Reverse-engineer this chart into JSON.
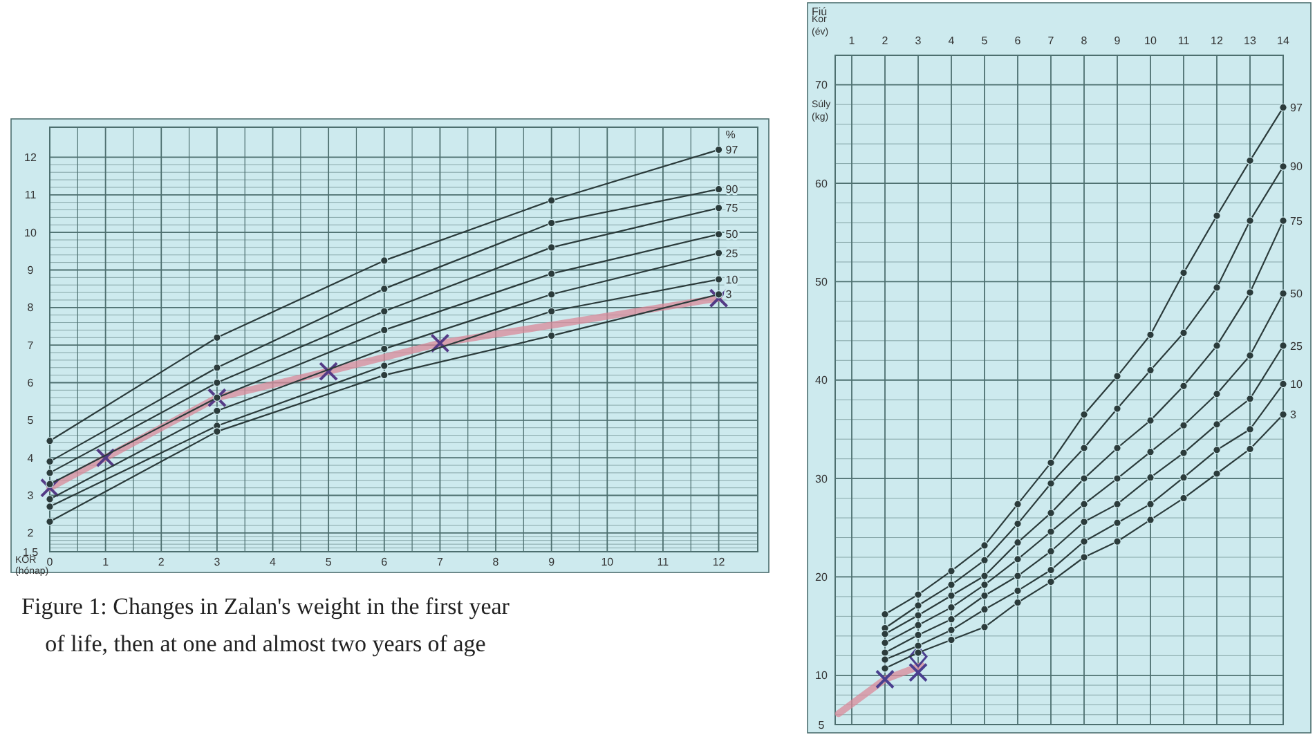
{
  "chart_data": [
    {
      "type": "line",
      "xlabel": "KOR (hónap)",
      "legend_title": "%",
      "xlim": [
        0,
        12.7
      ],
      "xticks": [
        0,
        1,
        2,
        3,
        4,
        5,
        6,
        7,
        8,
        9,
        10,
        11,
        12
      ],
      "ylim": [
        1.5,
        12.8
      ],
      "yticks": [
        1.5,
        2,
        3,
        4,
        5,
        6,
        7,
        8,
        9,
        10,
        11,
        12
      ],
      "grid": true,
      "annotations": [
        "Figure 1: Changes in Zalan's weight in the first year of life, then at one and almost two years of age"
      ],
      "series": [
        {
          "name": "97",
          "color": "#2b3b3b",
          "marker": "circle",
          "x": [
            0,
            3,
            6,
            9,
            12
          ],
          "values": [
            4.45,
            7.2,
            9.25,
            10.85,
            12.2
          ]
        },
        {
          "name": "90",
          "color": "#2b3b3b",
          "marker": "circle",
          "x": [
            0,
            3,
            6,
            9,
            12
          ],
          "values": [
            3.9,
            6.4,
            8.5,
            10.25,
            11.15
          ]
        },
        {
          "name": "75",
          "color": "#2b3b3b",
          "marker": "circle",
          "x": [
            0,
            3,
            6,
            9,
            12
          ],
          "values": [
            3.6,
            6.0,
            7.9,
            9.6,
            10.65
          ]
        },
        {
          "name": "50",
          "color": "#2b3b3b",
          "marker": "circle",
          "x": [
            0,
            3,
            6,
            9,
            12
          ],
          "values": [
            3.3,
            5.6,
            7.4,
            8.9,
            9.95
          ]
        },
        {
          "name": "25",
          "color": "#2b3b3b",
          "marker": "circle",
          "x": [
            0,
            3,
            6,
            9,
            12
          ],
          "values": [
            2.9,
            5.25,
            6.9,
            8.35,
            9.45
          ]
        },
        {
          "name": "10",
          "color": "#2b3b3b",
          "marker": "circle",
          "x": [
            0,
            3,
            6,
            9,
            12
          ],
          "values": [
            2.7,
            4.85,
            6.45,
            7.9,
            8.75
          ]
        },
        {
          "name": "3",
          "color": "#2b3b3b",
          "marker": "circle",
          "x": [
            0,
            3,
            6,
            9,
            12
          ],
          "values": [
            2.3,
            4.7,
            6.2,
            7.25,
            8.35
          ]
        },
        {
          "color": "#d98a9a",
          "marker": "cross",
          "x": [
            0,
            1,
            3,
            5,
            7,
            12
          ],
          "values": [
            3.2,
            4.0,
            5.6,
            6.3,
            7.05,
            8.25
          ]
        }
      ]
    },
    {
      "type": "line",
      "title": "Fiú",
      "xlabel": "Kor (év)",
      "ylabel": "Súly (kg)",
      "xlim": [
        0.5,
        14
      ],
      "xticks": [
        1,
        2,
        3,
        4,
        5,
        6,
        7,
        8,
        9,
        10,
        11,
        12,
        13,
        14
      ],
      "ylim": [
        5,
        73
      ],
      "yticks": [
        5,
        10,
        20,
        30,
        40,
        50,
        60,
        70
      ],
      "grid": true,
      "series": [
        {
          "name": "97",
          "color": "#2b3b3b",
          "marker": "circle",
          "x": [
            2,
            3,
            4,
            5,
            6,
            7,
            8,
            9,
            10,
            11,
            12,
            13,
            14
          ],
          "values": [
            16.2,
            18.2,
            20.6,
            23.2,
            27.4,
            31.6,
            36.5,
            40.4,
            44.6,
            50.9,
            56.7,
            62.3,
            67.7
          ]
        },
        {
          "name": "90",
          "color": "#2b3b3b",
          "marker": "circle",
          "x": [
            2,
            3,
            4,
            5,
            6,
            7,
            8,
            9,
            10,
            11,
            12,
            13,
            14
          ],
          "values": [
            14.8,
            17.1,
            19.2,
            21.7,
            25.4,
            29.5,
            33.1,
            37.1,
            41.0,
            44.8,
            49.4,
            56.2,
            61.7
          ]
        },
        {
          "name": "75",
          "color": "#2b3b3b",
          "marker": "circle",
          "x": [
            2,
            3,
            4,
            5,
            6,
            7,
            8,
            9,
            10,
            11,
            12,
            13,
            14
          ],
          "values": [
            14.2,
            16.1,
            18.1,
            20.1,
            23.5,
            26.5,
            30.0,
            33.1,
            35.9,
            39.4,
            43.5,
            48.9,
            56.2
          ]
        },
        {
          "name": "50",
          "color": "#2b3b3b",
          "marker": "circle",
          "x": [
            2,
            3,
            4,
            5,
            6,
            7,
            8,
            9,
            10,
            11,
            12,
            13,
            14
          ],
          "values": [
            13.3,
            15.1,
            16.9,
            19.2,
            21.8,
            24.6,
            27.4,
            30.0,
            32.7,
            35.4,
            38.6,
            42.5,
            48.8
          ]
        },
        {
          "name": "25",
          "color": "#2b3b3b",
          "marker": "circle",
          "x": [
            2,
            3,
            4,
            5,
            6,
            7,
            8,
            9,
            10,
            11,
            12,
            13,
            14
          ],
          "values": [
            12.3,
            14.1,
            15.7,
            18.1,
            20.1,
            22.6,
            25.6,
            27.4,
            30.1,
            32.6,
            35.5,
            38.1,
            43.5
          ]
        },
        {
          "name": "10",
          "color": "#2b3b3b",
          "marker": "circle",
          "x": [
            2,
            3,
            4,
            5,
            6,
            7,
            8,
            9,
            10,
            11,
            12,
            13,
            14
          ],
          "values": [
            11.6,
            13.0,
            14.6,
            16.7,
            18.6,
            20.7,
            23.6,
            25.5,
            27.4,
            30.1,
            32.9,
            35.0,
            39.6
          ]
        },
        {
          "name": "3",
          "color": "#2b3b3b",
          "marker": "circle",
          "x": [
            2,
            3,
            4,
            5,
            6,
            7,
            8,
            9,
            10,
            11,
            12,
            13,
            14
          ],
          "values": [
            10.7,
            12.3,
            13.6,
            14.9,
            17.4,
            19.5,
            22.0,
            23.6,
            25.8,
            28.0,
            30.5,
            33.0,
            36.5
          ]
        },
        {
          "color": "#d98a9a",
          "marker": "none",
          "x": [
            0.6,
            2,
            3.1
          ],
          "values": [
            6.1,
            9.6,
            11.0
          ]
        },
        {
          "type": "scatter",
          "color": "#4a3f8f",
          "marker": "cross",
          "x": [
            2,
            3
          ],
          "values": [
            9.6,
            10.3
          ]
        },
        {
          "type": "scatter",
          "color": "#4a3f8f",
          "marker": "diamond",
          "x": [
            3
          ],
          "values": [
            11.9
          ]
        }
      ]
    }
  ]
}
